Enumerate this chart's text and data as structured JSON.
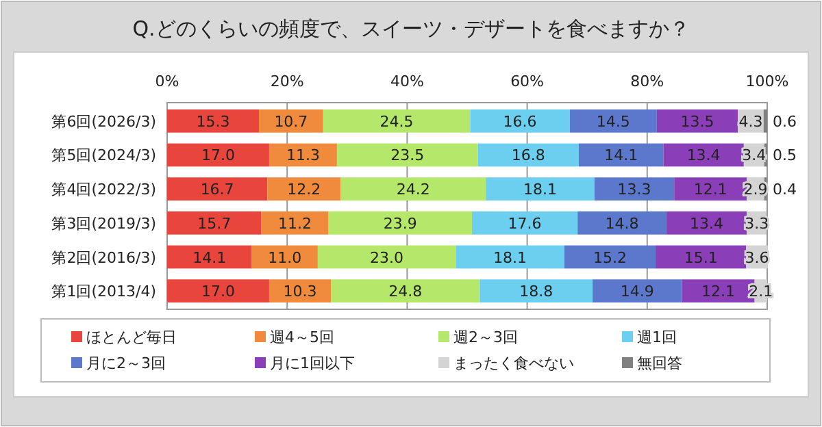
{
  "chart_data": {
    "type": "bar",
    "orientation": "horizontal",
    "stacked": true,
    "title": "Q.どのくらいの頻度で、スイーツ・デザートを食べますか？",
    "categories": [
      "第6回(2026/3)",
      "第5回(2024/3)",
      "第4回(2022/3)",
      "第3回(2019/3)",
      "第2回(2016/3)",
      "第1回(2013/4)"
    ],
    "series": [
      {
        "name": "ほとんど毎日",
        "color": "#e8453c",
        "values": [
          15.3,
          17.0,
          16.7,
          15.7,
          14.1,
          17.0
        ],
        "value_labels": [
          "15.3",
          "17.0",
          "16.7",
          "15.7",
          "14.1",
          "17.0"
        ]
      },
      {
        "name": "週4～5回",
        "color": "#f08a3c",
        "values": [
          10.7,
          11.3,
          12.2,
          11.2,
          11.0,
          10.3
        ],
        "value_labels": [
          "10.7",
          "11.3",
          "12.2",
          "11.2",
          "11.0",
          "10.3"
        ]
      },
      {
        "name": "週2～3回",
        "color": "#b5e86a",
        "values": [
          24.5,
          23.5,
          24.2,
          23.9,
          23.0,
          24.8
        ],
        "value_labels": [
          "24.5",
          "23.5",
          "24.2",
          "23.9",
          "23.0",
          "24.8"
        ]
      },
      {
        "name": "週1回",
        "color": "#6ccff0",
        "values": [
          16.6,
          16.8,
          18.1,
          17.6,
          18.1,
          18.8
        ],
        "value_labels": [
          "16.6",
          "16.8",
          "18.1",
          "17.6",
          "18.1",
          "18.8"
        ]
      },
      {
        "name": "月に2～3回",
        "color": "#5b78cc",
        "values": [
          14.5,
          14.1,
          13.3,
          14.8,
          15.2,
          14.9
        ],
        "value_labels": [
          "14.5",
          "14.1",
          "13.3",
          "14.8",
          "15.2",
          "14.9"
        ]
      },
      {
        "name": "月に1回以下",
        "color": "#8a3fb8",
        "values": [
          13.5,
          13.4,
          12.1,
          13.4,
          15.1,
          12.1
        ],
        "value_labels": [
          "13.5",
          "13.4",
          "12.1",
          "13.4",
          "15.1",
          "12.1"
        ]
      },
      {
        "name": "まったく食べない",
        "color": "#d4d4d4",
        "values": [
          4.3,
          3.4,
          2.9,
          3.3,
          3.6,
          2.1
        ],
        "value_labels": [
          "4.3",
          "3.4",
          "2.9",
          "3.3",
          "3.6",
          "2.1"
        ]
      },
      {
        "name": "無回答",
        "color": "#808080",
        "values": [
          0.6,
          0.5,
          0.4,
          null,
          null,
          null
        ],
        "value_labels": [
          "0.6",
          "0.5",
          "0.4",
          null,
          null,
          null
        ]
      }
    ],
    "xlim": [
      0,
      100
    ],
    "xticks": [
      {
        "value": 0,
        "label": "0%"
      },
      {
        "value": 20,
        "label": "20%"
      },
      {
        "value": 40,
        "label": "40%"
      },
      {
        "value": 60,
        "label": "60%"
      },
      {
        "value": 80,
        "label": "80%"
      },
      {
        "value": 100,
        "label": "100%"
      }
    ],
    "grid": "x",
    "legend": "bottom"
  }
}
